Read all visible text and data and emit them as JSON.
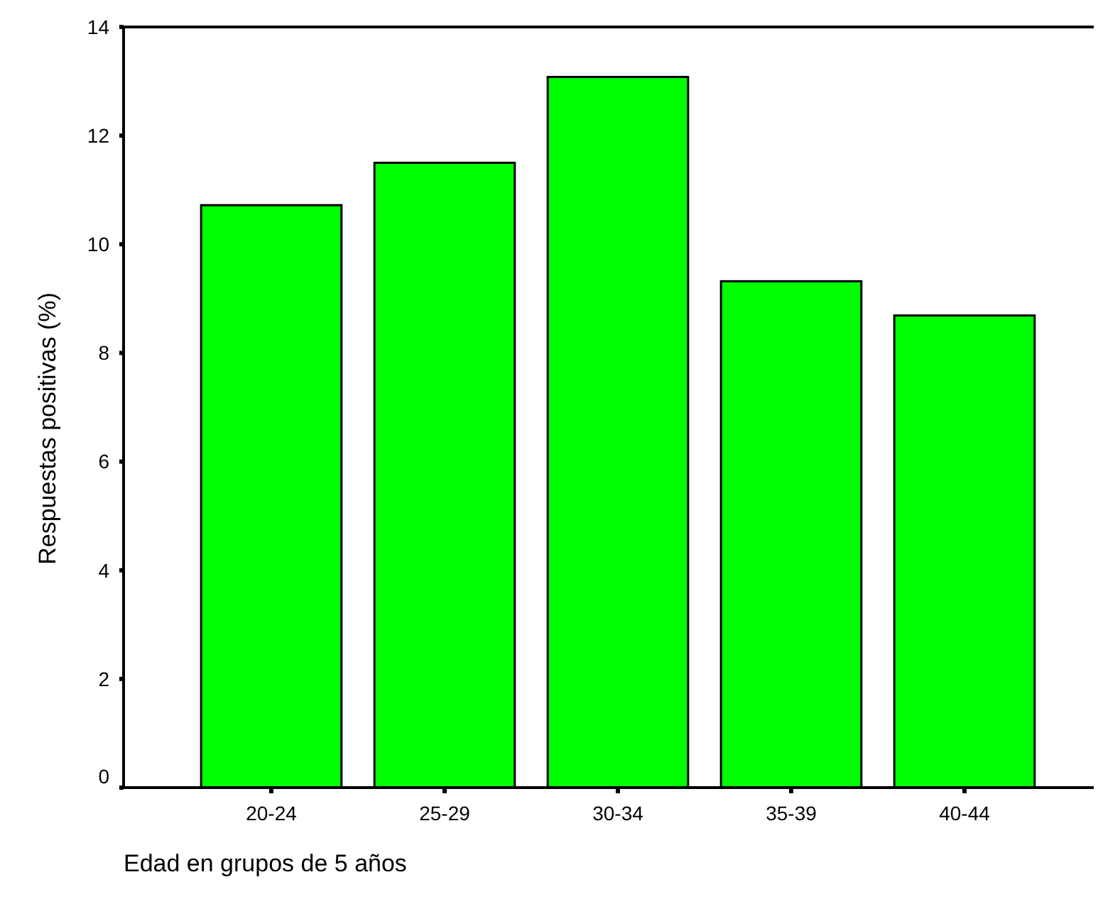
{
  "chart_data": {
    "type": "bar",
    "xlabel": "Edad en grupos de 5 años",
    "ylabel": "Respuestas positivas (%)",
    "categories": [
      "20-24",
      "25-29",
      "30-34",
      "35-39",
      "40-44"
    ],
    "values": [
      10.72,
      11.5,
      13.08,
      9.32,
      8.69
    ],
    "color": "#00ff00",
    "ylim": [
      0,
      14
    ],
    "yticks": [
      0,
      2,
      4,
      6,
      8,
      10,
      12,
      14
    ],
    "grid": false
  }
}
